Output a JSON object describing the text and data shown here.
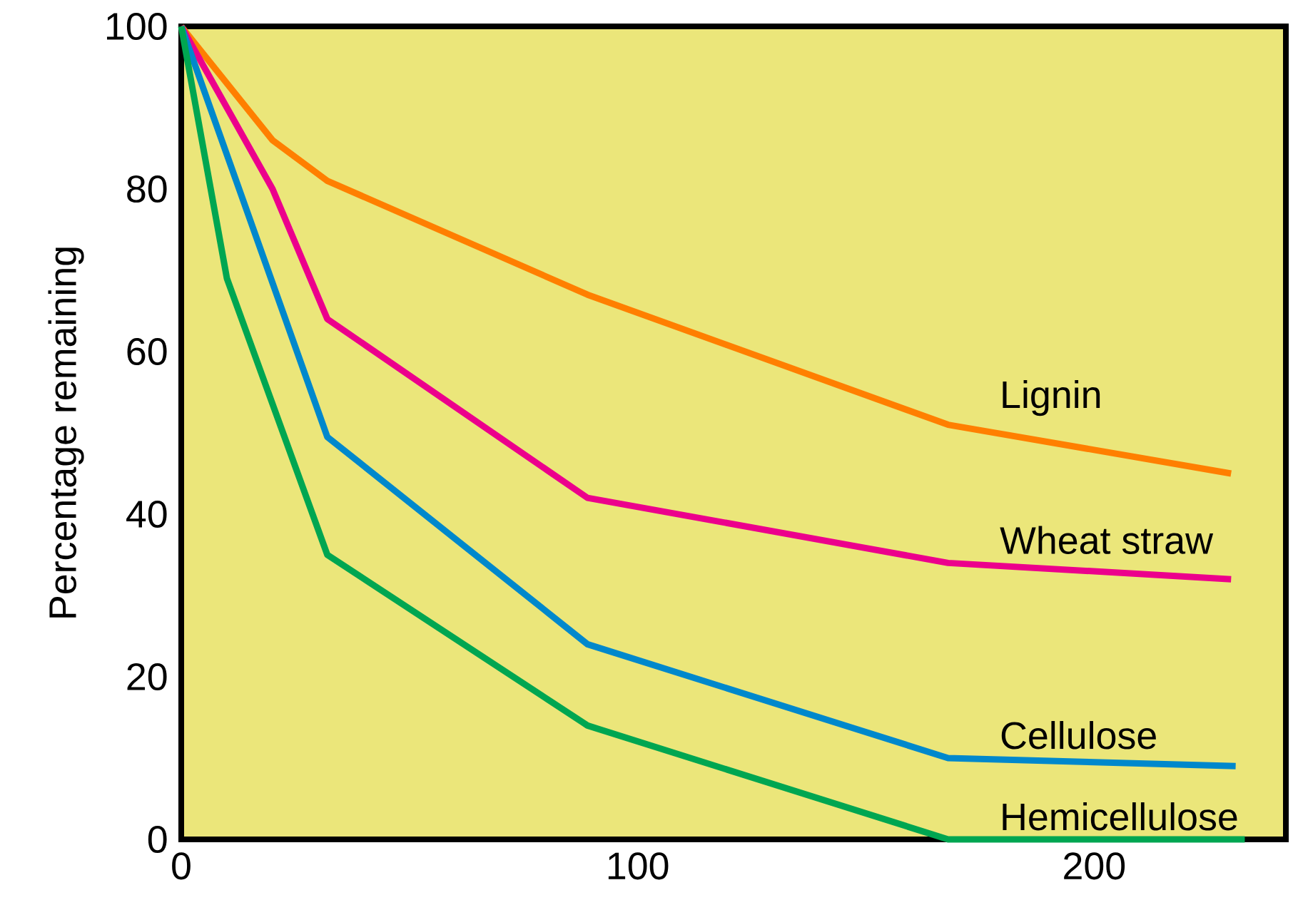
{
  "chart_data": {
    "type": "line",
    "ylabel": "Percentage remaining",
    "xlim": [
      0,
      242
    ],
    "xticks": [
      0,
      100,
      200
    ],
    "ylim": [
      0,
      100
    ],
    "yticks": [
      0,
      20,
      40,
      60,
      80,
      100
    ],
    "legend": false,
    "grid": false,
    "marker": "none",
    "line_style": "solid",
    "series": [
      {
        "name": "Lignin",
        "color": "#ff7f00",
        "x": [
          0,
          20,
          32,
          89,
          168,
          230
        ],
        "values": [
          100,
          86,
          81,
          67,
          51,
          45
        ]
      },
      {
        "name": "Wheat straw",
        "color": "#ec008c",
        "x": [
          0,
          20,
          32,
          89,
          168,
          230
        ],
        "values": [
          100,
          80,
          64,
          42,
          34,
          32
        ]
      },
      {
        "name": "Cellulose",
        "color": "#0088cc",
        "x": [
          0,
          32,
          89,
          168,
          231
        ],
        "values": [
          100,
          49.5,
          24,
          10,
          9
        ]
      },
      {
        "name": "Hemicellulose",
        "color": "#00a651",
        "x": [
          0,
          10,
          32,
          89,
          168,
          233
        ],
        "values": [
          100,
          69,
          35,
          14,
          0,
          0
        ]
      }
    ]
  }
}
